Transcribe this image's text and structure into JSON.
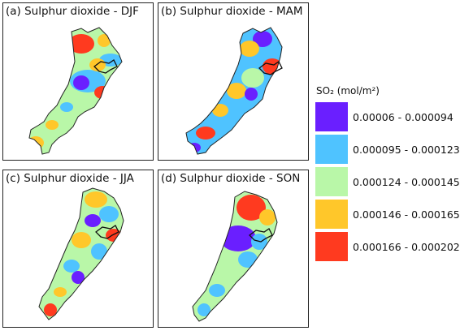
{
  "panels": [
    {
      "title": "(a) Sulphur dioxide - DJF"
    },
    {
      "title": "(b) Sulphur dioxide - MAM"
    },
    {
      "title": "(c) Sulphur dioxide - JJA"
    },
    {
      "title": "(d) Sulphur dioxide - SON"
    }
  ],
  "legend": {
    "title": "SO₂ (mol/m²)",
    "classes": [
      {
        "label": "0.00006 - 0.000094",
        "color": "#6a1fff"
      },
      {
        "label": "0.000095 - 0.000123",
        "color": "#4fc3ff"
      },
      {
        "label": "0.000124 - 0.000145",
        "color": "#b9f7a8"
      },
      {
        "label": "0.000146 - 0.000165",
        "color": "#ffc72a"
      },
      {
        "label": "0.000166 - 0.000202",
        "color": "#ff3a1f"
      }
    ]
  }
}
